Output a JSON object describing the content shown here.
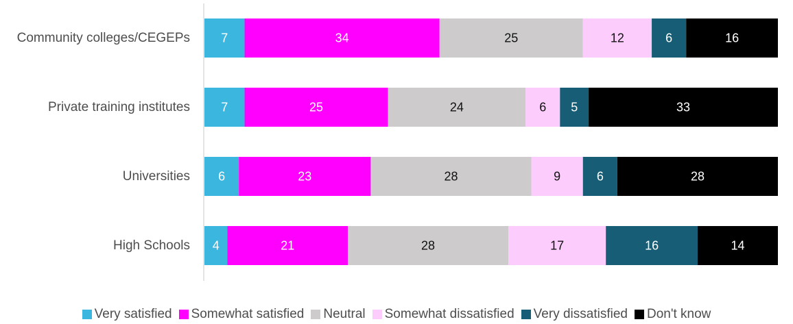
{
  "chart_data": {
    "type": "bar",
    "orientation": "horizontal",
    "stacked": true,
    "categories": [
      "Community colleges/CEGEPs",
      "Private training institutes",
      "Universities",
      "High Schools"
    ],
    "series": [
      {
        "name": "Very satisfied",
        "color": "#3bb6df",
        "values": [
          7,
          7,
          6,
          4
        ]
      },
      {
        "name": "Somewhat satisfied",
        "color": "#ff00ff",
        "values": [
          34,
          25,
          23,
          21
        ]
      },
      {
        "name": "Neutral",
        "color": "#cdcbcb",
        "values": [
          25,
          24,
          28,
          28
        ]
      },
      {
        "name": "Somewhat dissatisfied",
        "color": "#fccdfc",
        "values": [
          12,
          6,
          9,
          17
        ]
      },
      {
        "name": "Very dissatisfied",
        "color": "#165d75",
        "values": [
          6,
          5,
          6,
          16
        ]
      },
      {
        "name": "Don't know",
        "color": "#000000",
        "values": [
          16,
          33,
          28,
          14
        ]
      }
    ],
    "xlim": [
      0,
      100
    ],
    "grid": false,
    "legend_position": "bottom"
  }
}
